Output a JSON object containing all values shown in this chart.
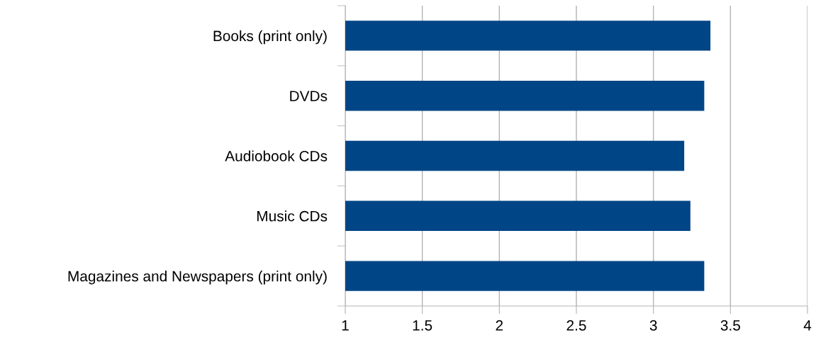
{
  "chart_data": {
    "type": "bar",
    "orientation": "horizontal",
    "categories": [
      "Books (print only)",
      "DVDs",
      "Audiobook CDs",
      "Music CDs",
      "Magazines and Newspapers (print only)"
    ],
    "values": [
      3.37,
      3.33,
      3.2,
      3.24,
      3.33
    ],
    "color": "#004586",
    "xlim": [
      1,
      4
    ],
    "xticks": [
      1,
      1.5,
      2,
      2.5,
      3,
      3.5,
      4
    ],
    "grid": "x",
    "legend": false
  }
}
